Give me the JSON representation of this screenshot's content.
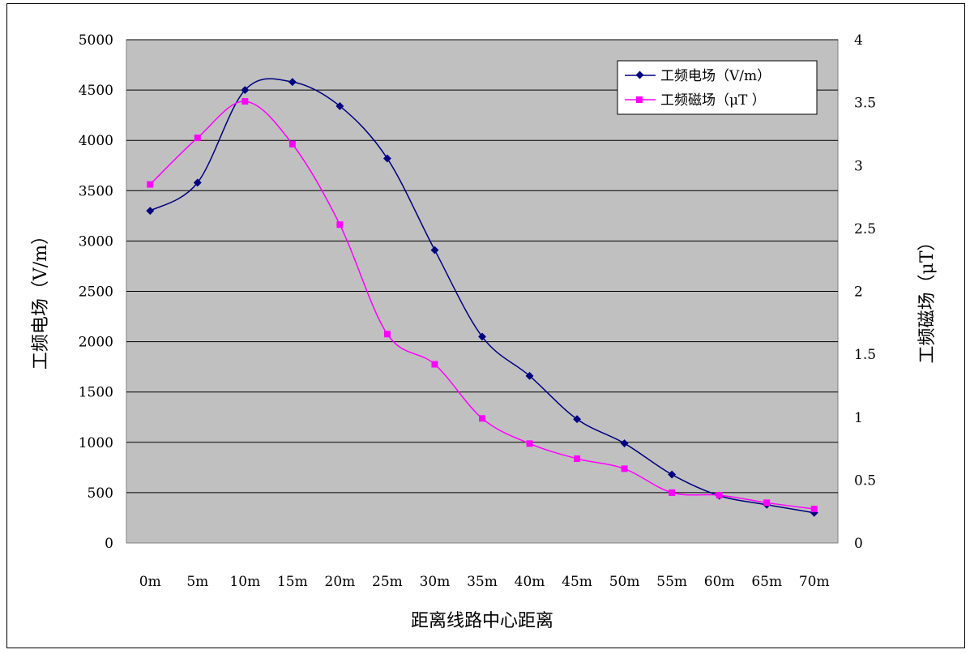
{
  "chart_data": {
    "type": "line",
    "categories": [
      "0m",
      "5m",
      "10m",
      "15m",
      "20m",
      "25m",
      "30m",
      "35m",
      "40m",
      "45m",
      "50m",
      "55m",
      "60m",
      "65m",
      "70m"
    ],
    "xlabel": "距离线路中心距离",
    "ylabel": "工频电场（V/m）",
    "y2label": "工频磁场（μT）",
    "ylim": [
      0,
      5000
    ],
    "y2lim": [
      0,
      4
    ],
    "yticks": [
      "0",
      "500",
      "1000",
      "1500",
      "2000",
      "2500",
      "3000",
      "3500",
      "4000",
      "4500",
      "5000"
    ],
    "y2ticks": [
      "0",
      "0.5",
      "1",
      "1.5",
      "2",
      "2.5",
      "3",
      "3.5",
      "4"
    ],
    "grid": true,
    "legend_position": "top-right",
    "plot_background": "#c0c0c0",
    "series": [
      {
        "name": "工频电场（V/m）",
        "axis": "left",
        "color": "#000080",
        "marker": "diamond",
        "values": [
          3300,
          3580,
          4500,
          4580,
          4340,
          3820,
          2910,
          2050,
          1660,
          1230,
          990,
          680,
          470,
          380,
          300
        ]
      },
      {
        "name": "工频磁场（μT ）",
        "axis": "right",
        "color": "#ff00ff",
        "marker": "square",
        "values": [
          2.85,
          3.22,
          3.51,
          3.17,
          2.53,
          1.66,
          1.42,
          0.99,
          0.79,
          0.67,
          0.59,
          0.4,
          0.38,
          0.32,
          0.27
        ]
      }
    ]
  }
}
